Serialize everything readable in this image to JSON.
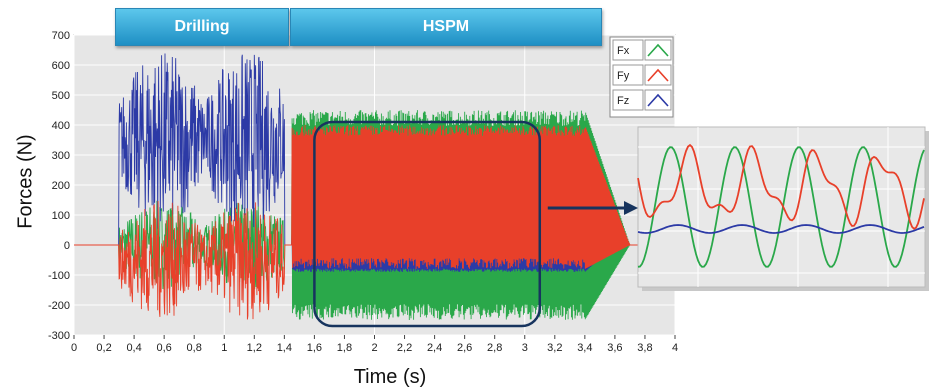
{
  "banners": {
    "drilling": "Drilling",
    "hspm": "HSPM"
  },
  "chart_data": {
    "type": "line",
    "title": "",
    "xlabel": "Time (s)",
    "ylabel": "Forces (N)",
    "xlim": [
      0,
      4
    ],
    "ylim": [
      -300,
      700
    ],
    "x_ticks": [
      "0",
      "0,2",
      "0,4",
      "0,6",
      "0,8",
      "1",
      "1,2",
      "1,4",
      "1,6",
      "1,8",
      "2",
      "2,2",
      "2,4",
      "2,6",
      "2,8",
      "3",
      "3,2",
      "3,4",
      "3,6",
      "3,8",
      "4"
    ],
    "y_ticks": [
      "-300",
      "-200",
      "-100",
      "0",
      "100",
      "200",
      "300",
      "400",
      "500",
      "600",
      "700"
    ],
    "grid": true,
    "legend_position": "top-right",
    "series": [
      {
        "name": "Fx",
        "color": "#2aa84a",
        "phases": {
          "drilling": {
            "x": [
              0.3,
              1.4
            ],
            "min": -150,
            "max": 150
          },
          "hspm": {
            "x": [
              1.45,
              3.4
            ],
            "min": -250,
            "max": 450
          },
          "decay_end": 3.7
        }
      },
      {
        "name": "Fy",
        "color": "#e8402a",
        "phases": {
          "drilling": {
            "x": [
              0.3,
              1.4
            ],
            "min": -250,
            "max": 150
          },
          "hspm": {
            "x": [
              1.45,
              3.4
            ],
            "min": -80,
            "max": 400
          },
          "decay_end": 3.7
        }
      },
      {
        "name": "Fz",
        "color": "#2c3aa6",
        "phases": {
          "drilling": {
            "x": [
              0.3,
              1.4
            ],
            "min": 50,
            "max": 650
          },
          "hspm": {
            "x": [
              1.45,
              3.4
            ],
            "min": -90,
            "max": 60
          },
          "decay_end": 3.6
        }
      }
    ],
    "highlight_box": {
      "x": [
        1.6,
        3.1
      ],
      "y": [
        -270,
        410
      ]
    },
    "zoom_inset": {
      "series_order": [
        "Fx",
        "Fy",
        "Fz"
      ]
    }
  }
}
